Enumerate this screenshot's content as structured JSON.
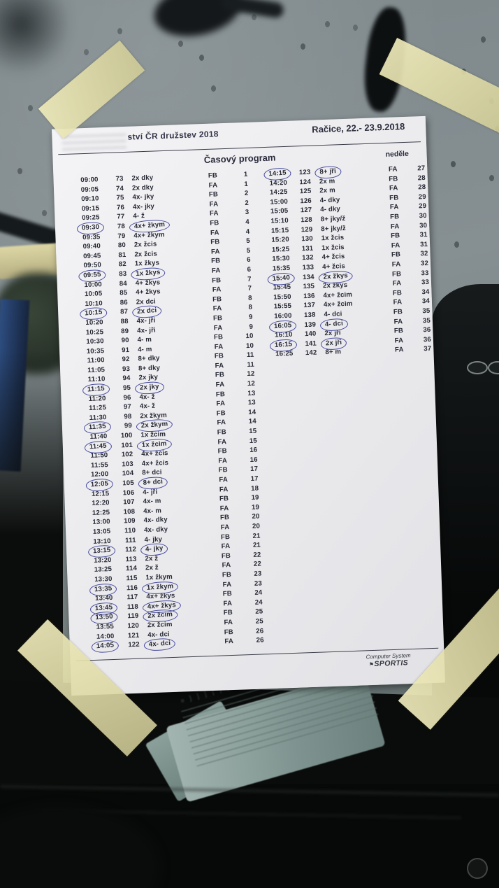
{
  "photo": {
    "colors": {
      "paper": "#f3f3f5",
      "tape": "#e9e5b4",
      "print_ink": "#262833",
      "pen_ink": "#474b9d"
    }
  },
  "document": {
    "header_left": "ství ČR družstev 2018",
    "header_right": "Račice,  22.- 23.9.2018",
    "program_title": "Časový program",
    "day_label": "neděle",
    "footer": {
      "line1": "Computer System",
      "flag_icon": "⚑",
      "line2": "SPORTIS"
    },
    "schedule": {
      "columns": [
        "time",
        "number",
        "event",
        "heat",
        "race"
      ],
      "left_rows": [
        {
          "time": "09:00",
          "num": "73",
          "event": "2x dky",
          "heat": "FB",
          "race": "1",
          "tc": false,
          "ec": false
        },
        {
          "time": "09:05",
          "num": "74",
          "event": "2x dky",
          "heat": "FA",
          "race": "1",
          "tc": false,
          "ec": false
        },
        {
          "time": "09:10",
          "num": "75",
          "event": "4x- jky",
          "heat": "FB",
          "race": "2",
          "tc": false,
          "ec": false
        },
        {
          "time": "09:15",
          "num": "76",
          "event": "4x- jky",
          "heat": "FA",
          "race": "2",
          "tc": false,
          "ec": false
        },
        {
          "time": "09:25",
          "num": "77",
          "event": "4- ž",
          "heat": "FA",
          "race": "3",
          "tc": false,
          "ec": false
        },
        {
          "time": "09:30",
          "num": "78",
          "event": "4x+ žkym",
          "heat": "FB",
          "race": "4",
          "tc": true,
          "ec": true
        },
        {
          "time": "09:35",
          "num": "79",
          "event": "4x+ žkym",
          "heat": "FA",
          "race": "4",
          "tc": false,
          "ec": false
        },
        {
          "time": "09:40",
          "num": "80",
          "event": "2x žcis",
          "heat": "FB",
          "race": "5",
          "tc": false,
          "ec": false
        },
        {
          "time": "09:45",
          "num": "81",
          "event": "2x žcis",
          "heat": "FA",
          "race": "5",
          "tc": false,
          "ec": false
        },
        {
          "time": "09:50",
          "num": "82",
          "event": "1x žkys",
          "heat": "FB",
          "race": "6",
          "tc": false,
          "ec": false
        },
        {
          "time": "09:55",
          "num": "83",
          "event": "1x žkys",
          "heat": "FA",
          "race": "6",
          "tc": true,
          "ec": true
        },
        {
          "time": "10:00",
          "num": "84",
          "event": "4+ žkys",
          "heat": "FB",
          "race": "7",
          "tc": false,
          "ec": false
        },
        {
          "time": "10:05",
          "num": "85",
          "event": "4+ žkys",
          "heat": "FA",
          "race": "7",
          "tc": false,
          "ec": false
        },
        {
          "time": "10:10",
          "num": "86",
          "event": "2x dci",
          "heat": "FB",
          "race": "8",
          "tc": false,
          "ec": false
        },
        {
          "time": "10:15",
          "num": "87",
          "event": "2x dci",
          "heat": "FA",
          "race": "8",
          "tc": true,
          "ec": true
        },
        {
          "time": "10:20",
          "num": "88",
          "event": "4x- jři",
          "heat": "FB",
          "race": "9",
          "tc": false,
          "ec": false
        },
        {
          "time": "10:25",
          "num": "89",
          "event": "4x- jři",
          "heat": "FA",
          "race": "9",
          "tc": false,
          "ec": false
        },
        {
          "time": "10:30",
          "num": "90",
          "event": "4- m",
          "heat": "FB",
          "race": "10",
          "tc": false,
          "ec": false
        },
        {
          "time": "10:35",
          "num": "91",
          "event": "4- m",
          "heat": "FA",
          "race": "10",
          "tc": false,
          "ec": false
        },
        {
          "time": "11:00",
          "num": "92",
          "event": "8+ dky",
          "heat": "FB",
          "race": "11",
          "tc": false,
          "ec": false
        },
        {
          "time": "11:05",
          "num": "93",
          "event": "8+ dky",
          "heat": "FA",
          "race": "11",
          "tc": false,
          "ec": false
        },
        {
          "time": "11:10",
          "num": "94",
          "event": "2x jky",
          "heat": "FB",
          "race": "12",
          "tc": false,
          "ec": false
        },
        {
          "time": "11:15",
          "num": "95",
          "event": "2x jky",
          "heat": "FA",
          "race": "12",
          "tc": true,
          "ec": true
        },
        {
          "time": "11:20",
          "num": "96",
          "event": "4x- ž",
          "heat": "FB",
          "race": "13",
          "tc": false,
          "ec": false
        },
        {
          "time": "11:25",
          "num": "97",
          "event": "4x- ž",
          "heat": "FA",
          "race": "13",
          "tc": false,
          "ec": false
        },
        {
          "time": "11:30",
          "num": "98",
          "event": "2x žkym",
          "heat": "FB",
          "race": "14",
          "tc": false,
          "ec": false
        },
        {
          "time": "11:35",
          "num": "99",
          "event": "2x žkym",
          "heat": "FA",
          "race": "14",
          "tc": true,
          "ec": true
        },
        {
          "time": "11:40",
          "num": "100",
          "event": "1x žcim",
          "heat": "FB",
          "race": "15",
          "tc": false,
          "ec": false
        },
        {
          "time": "11:45",
          "num": "101",
          "event": "1x žcim",
          "heat": "FA",
          "race": "15",
          "tc": true,
          "ec": true
        },
        {
          "time": "11:50",
          "num": "102",
          "event": "4x+ žcis",
          "heat": "FB",
          "race": "16",
          "tc": false,
          "ec": false
        },
        {
          "time": "11:55",
          "num": "103",
          "event": "4x+ žcis",
          "heat": "FA",
          "race": "16",
          "tc": false,
          "ec": false
        },
        {
          "time": "12:00",
          "num": "104",
          "event": "8+ dci",
          "heat": "FB",
          "race": "17",
          "tc": false,
          "ec": false
        },
        {
          "time": "12:05",
          "num": "105",
          "event": "8+ dci",
          "heat": "FA",
          "race": "17",
          "tc": true,
          "ec": true
        },
        {
          "time": "12:15",
          "num": "106",
          "event": "4- jři",
          "heat": "FA",
          "race": "18",
          "tc": false,
          "ec": false
        },
        {
          "time": "12:20",
          "num": "107",
          "event": "4x- m",
          "heat": "FB",
          "race": "19",
          "tc": false,
          "ec": false
        },
        {
          "time": "12:25",
          "num": "108",
          "event": "4x- m",
          "heat": "FA",
          "race": "19",
          "tc": false,
          "ec": false
        },
        {
          "time": "13:00",
          "num": "109",
          "event": "4x- dky",
          "heat": "FB",
          "race": "20",
          "tc": false,
          "ec": false
        },
        {
          "time": "13:05",
          "num": "110",
          "event": "4x- dky",
          "heat": "FA",
          "race": "20",
          "tc": false,
          "ec": false
        },
        {
          "time": "13:10",
          "num": "111",
          "event": "4- jky",
          "heat": "FB",
          "race": "21",
          "tc": false,
          "ec": false
        },
        {
          "time": "13:15",
          "num": "112",
          "event": "4- jky",
          "heat": "FA",
          "race": "21",
          "tc": true,
          "ec": true
        },
        {
          "time": "13:20",
          "num": "113",
          "event": "2x ž",
          "heat": "FB",
          "race": "22",
          "tc": false,
          "ec": false
        },
        {
          "time": "13:25",
          "num": "114",
          "event": "2x ž",
          "heat": "FA",
          "race": "22",
          "tc": false,
          "ec": false
        },
        {
          "time": "13:30",
          "num": "115",
          "event": "1x žkym",
          "heat": "FB",
          "race": "23",
          "tc": false,
          "ec": false
        },
        {
          "time": "13:35",
          "num": "116",
          "event": "1x žkym",
          "heat": "FA",
          "race": "23",
          "tc": true,
          "ec": true
        },
        {
          "time": "13:40",
          "num": "117",
          "event": "4x+ žkys",
          "heat": "FB",
          "race": "24",
          "tc": false,
          "ec": false
        },
        {
          "time": "13:45",
          "num": "118",
          "event": "4x+ žkys",
          "heat": "FA",
          "race": "24",
          "tc": true,
          "ec": true
        },
        {
          "time": "13:50",
          "num": "119",
          "event": "2x žcim",
          "heat": "FB",
          "race": "25",
          "tc": true,
          "ec": true
        },
        {
          "time": "13:55",
          "num": "120",
          "event": "2x žcim",
          "heat": "FA",
          "race": "25",
          "tc": false,
          "ec": false
        },
        {
          "time": "14:00",
          "num": "121",
          "event": "4x- dci",
          "heat": "FB",
          "race": "26",
          "tc": false,
          "ec": false
        },
        {
          "time": "14:05",
          "num": "122",
          "event": "4x- dci",
          "heat": "FA",
          "race": "26",
          "tc": true,
          "ec": true
        }
      ],
      "right_rows": [
        {
          "time": "14:15",
          "num": "123",
          "event": "8+ jři",
          "heat": "FA",
          "race": "27",
          "tc": true,
          "ec": true
        },
        {
          "time": "14:20",
          "num": "124",
          "event": "2x m",
          "heat": "FB",
          "race": "28",
          "tc": false,
          "ec": false
        },
        {
          "time": "14:25",
          "num": "125",
          "event": "2x m",
          "heat": "FA",
          "race": "28",
          "tc": false,
          "ec": false
        },
        {
          "time": "15:00",
          "num": "126",
          "event": "4- dky",
          "heat": "FB",
          "race": "29",
          "tc": false,
          "ec": false
        },
        {
          "time": "15:05",
          "num": "127",
          "event": "4- dky",
          "heat": "FA",
          "race": "29",
          "tc": false,
          "ec": false
        },
        {
          "time": "15:10",
          "num": "128",
          "event": "8+ jky/ž",
          "heat": "FB",
          "race": "30",
          "tc": false,
          "ec": false
        },
        {
          "time": "15:15",
          "num": "129",
          "event": "8+ jky/ž",
          "heat": "FA",
          "race": "30",
          "tc": false,
          "ec": false
        },
        {
          "time": "15:20",
          "num": "130",
          "event": "1x žcis",
          "heat": "FB",
          "race": "31",
          "tc": false,
          "ec": false
        },
        {
          "time": "15:25",
          "num": "131",
          "event": "1x žcis",
          "heat": "FA",
          "race": "31",
          "tc": false,
          "ec": false
        },
        {
          "time": "15:30",
          "num": "132",
          "event": "4+ žcis",
          "heat": "FB",
          "race": "32",
          "tc": false,
          "ec": false
        },
        {
          "time": "15:35",
          "num": "133",
          "event": "4+ žcis",
          "heat": "FA",
          "race": "32",
          "tc": false,
          "ec": false
        },
        {
          "time": "15:40",
          "num": "134",
          "event": "2x žkys",
          "heat": "FB",
          "race": "33",
          "tc": true,
          "ec": true
        },
        {
          "time": "15:45",
          "num": "135",
          "event": "2x žkys",
          "heat": "FA",
          "race": "33",
          "tc": false,
          "ec": false
        },
        {
          "time": "15:50",
          "num": "136",
          "event": "4x+ žcim",
          "heat": "FB",
          "race": "34",
          "tc": false,
          "ec": false
        },
        {
          "time": "15:55",
          "num": "137",
          "event": "4x+ žcim",
          "heat": "FA",
          "race": "34",
          "tc": false,
          "ec": false
        },
        {
          "time": "16:00",
          "num": "138",
          "event": "4- dci",
          "heat": "FB",
          "race": "35",
          "tc": false,
          "ec": false
        },
        {
          "time": "16:05",
          "num": "139",
          "event": "4- dci",
          "heat": "FA",
          "race": "35",
          "tc": true,
          "ec": true
        },
        {
          "time": "16:10",
          "num": "140",
          "event": "2x jři",
          "heat": "FB",
          "race": "36",
          "tc": false,
          "ec": false
        },
        {
          "time": "16:15",
          "num": "141",
          "event": "2x jři",
          "heat": "FA",
          "race": "36",
          "tc": true,
          "ec": true
        },
        {
          "time": "16:25",
          "num": "142",
          "event": "8+ m",
          "heat": "FA",
          "race": "37",
          "tc": false,
          "ec": false
        }
      ]
    }
  }
}
